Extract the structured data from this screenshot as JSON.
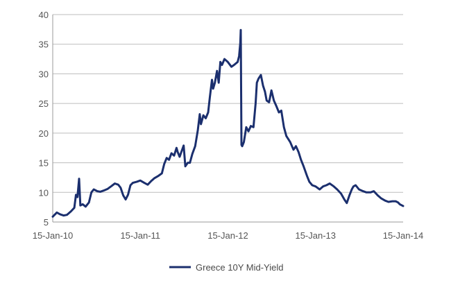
{
  "chart_data": {
    "type": "line",
    "title": "",
    "xlabel": "",
    "ylabel": "",
    "x_tick_labels": [
      "15-Jan-10",
      "15-Jan-11",
      "15-Jan-12",
      "15-Jan-13",
      "15-Jan-14"
    ],
    "x_range": [
      "2010-01-15",
      "2014-01-15"
    ],
    "ylim": [
      5,
      40
    ],
    "y_ticks": [
      5,
      10,
      15,
      20,
      25,
      30,
      35,
      40
    ],
    "grid": "horizontal",
    "legend_position": "bottom-center",
    "series": [
      {
        "name": "Greece 10Y Mid-Yield",
        "color": "#1b2f6e",
        "points": [
          [
            "2010-01-15",
            5.9
          ],
          [
            "2010-02-01",
            6.6
          ],
          [
            "2010-02-15",
            6.3
          ],
          [
            "2010-03-01",
            6.1
          ],
          [
            "2010-03-15",
            6.2
          ],
          [
            "2010-04-01",
            6.8
          ],
          [
            "2010-04-15",
            7.4
          ],
          [
            "2010-04-22",
            9.6
          ],
          [
            "2010-04-28",
            9.2
          ],
          [
            "2010-05-05",
            12.3
          ],
          [
            "2010-05-10",
            7.8
          ],
          [
            "2010-05-20",
            8.0
          ],
          [
            "2010-06-01",
            7.6
          ],
          [
            "2010-06-15",
            8.3
          ],
          [
            "2010-06-25",
            10.0
          ],
          [
            "2010-07-05",
            10.5
          ],
          [
            "2010-07-20",
            10.2
          ],
          [
            "2010-08-01",
            10.1
          ],
          [
            "2010-08-15",
            10.3
          ],
          [
            "2010-09-01",
            10.6
          ],
          [
            "2010-09-15",
            11.0
          ],
          [
            "2010-10-01",
            11.5
          ],
          [
            "2010-10-15",
            11.3
          ],
          [
            "2010-10-25",
            10.8
          ],
          [
            "2010-11-05",
            9.5
          ],
          [
            "2010-11-15",
            8.8
          ],
          [
            "2010-11-25",
            9.6
          ],
          [
            "2010-12-05",
            11.2
          ],
          [
            "2010-12-15",
            11.6
          ],
          [
            "2011-01-01",
            11.8
          ],
          [
            "2011-01-15",
            12.0
          ],
          [
            "2011-02-01",
            11.6
          ],
          [
            "2011-02-15",
            11.3
          ],
          [
            "2011-03-01",
            11.9
          ],
          [
            "2011-03-15",
            12.4
          ],
          [
            "2011-04-01",
            12.8
          ],
          [
            "2011-04-15",
            13.2
          ],
          [
            "2011-04-25",
            14.8
          ],
          [
            "2011-05-05",
            15.8
          ],
          [
            "2011-05-15",
            15.5
          ],
          [
            "2011-05-25",
            16.6
          ],
          [
            "2011-06-05",
            16.2
          ],
          [
            "2011-06-15",
            17.5
          ],
          [
            "2011-06-20",
            16.8
          ],
          [
            "2011-06-28",
            16.0
          ],
          [
            "2011-07-05",
            16.8
          ],
          [
            "2011-07-15",
            17.9
          ],
          [
            "2011-07-22",
            14.4
          ],
          [
            "2011-08-01",
            15.0
          ],
          [
            "2011-08-10",
            15.0
          ],
          [
            "2011-08-20",
            16.5
          ],
          [
            "2011-09-01",
            17.8
          ],
          [
            "2011-09-12",
            20.5
          ],
          [
            "2011-09-20",
            23.2
          ],
          [
            "2011-09-25",
            21.5
          ],
          [
            "2011-10-05",
            23.0
          ],
          [
            "2011-10-15",
            22.5
          ],
          [
            "2011-10-25",
            23.5
          ],
          [
            "2011-11-01",
            26.0
          ],
          [
            "2011-11-10",
            29.0
          ],
          [
            "2011-11-15",
            27.5
          ],
          [
            "2011-11-22",
            28.5
          ],
          [
            "2011-12-01",
            30.5
          ],
          [
            "2011-12-08",
            28.5
          ],
          [
            "2011-12-15",
            32.0
          ],
          [
            "2011-12-22",
            31.5
          ],
          [
            "2012-01-01",
            32.5
          ],
          [
            "2012-01-15",
            32.0
          ],
          [
            "2012-01-30",
            31.2
          ],
          [
            "2012-02-10",
            31.5
          ],
          [
            "2012-02-25",
            32.0
          ],
          [
            "2012-03-02",
            33.0
          ],
          [
            "2012-03-07",
            35.2
          ],
          [
            "2012-03-09",
            37.4
          ],
          [
            "2012-03-12",
            18.0
          ],
          [
            "2012-03-15",
            17.8
          ],
          [
            "2012-03-22",
            18.5
          ],
          [
            "2012-04-01",
            21.0
          ],
          [
            "2012-04-10",
            20.3
          ],
          [
            "2012-04-20",
            21.2
          ],
          [
            "2012-05-01",
            21.0
          ],
          [
            "2012-05-10",
            25.0
          ],
          [
            "2012-05-15",
            28.5
          ],
          [
            "2012-05-22",
            29.2
          ],
          [
            "2012-06-01",
            29.8
          ],
          [
            "2012-06-10",
            28.0
          ],
          [
            "2012-06-18",
            27.0
          ],
          [
            "2012-06-25",
            25.5
          ],
          [
            "2012-07-05",
            25.2
          ],
          [
            "2012-07-15",
            27.2
          ],
          [
            "2012-07-25",
            25.5
          ],
          [
            "2012-08-05",
            24.5
          ],
          [
            "2012-08-15",
            23.5
          ],
          [
            "2012-08-25",
            23.8
          ],
          [
            "2012-09-05",
            21.0
          ],
          [
            "2012-09-15",
            19.5
          ],
          [
            "2012-10-01",
            18.5
          ],
          [
            "2012-10-15",
            17.2
          ],
          [
            "2012-10-25",
            17.8
          ],
          [
            "2012-11-05",
            16.8
          ],
          [
            "2012-11-15",
            15.5
          ],
          [
            "2012-11-25",
            14.5
          ],
          [
            "2012-12-10",
            12.8
          ],
          [
            "2012-12-20",
            11.8
          ],
          [
            "2013-01-01",
            11.2
          ],
          [
            "2013-01-15",
            11.0
          ],
          [
            "2013-02-01",
            10.5
          ],
          [
            "2013-02-15",
            11.0
          ],
          [
            "2013-03-01",
            11.2
          ],
          [
            "2013-03-15",
            11.5
          ],
          [
            "2013-04-01",
            11.0
          ],
          [
            "2013-04-15",
            10.5
          ],
          [
            "2013-05-01",
            9.8
          ],
          [
            "2013-05-15",
            8.8
          ],
          [
            "2013-05-25",
            8.2
          ],
          [
            "2013-06-05",
            9.5
          ],
          [
            "2013-06-15",
            10.5
          ],
          [
            "2013-06-22",
            11.0
          ],
          [
            "2013-07-01",
            11.2
          ],
          [
            "2013-07-15",
            10.5
          ],
          [
            "2013-08-01",
            10.2
          ],
          [
            "2013-08-15",
            10.0
          ],
          [
            "2013-09-01",
            10.0
          ],
          [
            "2013-09-15",
            10.2
          ],
          [
            "2013-10-01",
            9.5
          ],
          [
            "2013-10-15",
            9.0
          ],
          [
            "2013-11-01",
            8.6
          ],
          [
            "2013-11-15",
            8.4
          ],
          [
            "2013-12-01",
            8.5
          ],
          [
            "2013-12-15",
            8.5
          ],
          [
            "2013-12-25",
            8.3
          ],
          [
            "2014-01-01",
            8.0
          ],
          [
            "2014-01-15",
            7.7
          ]
        ]
      }
    ]
  }
}
